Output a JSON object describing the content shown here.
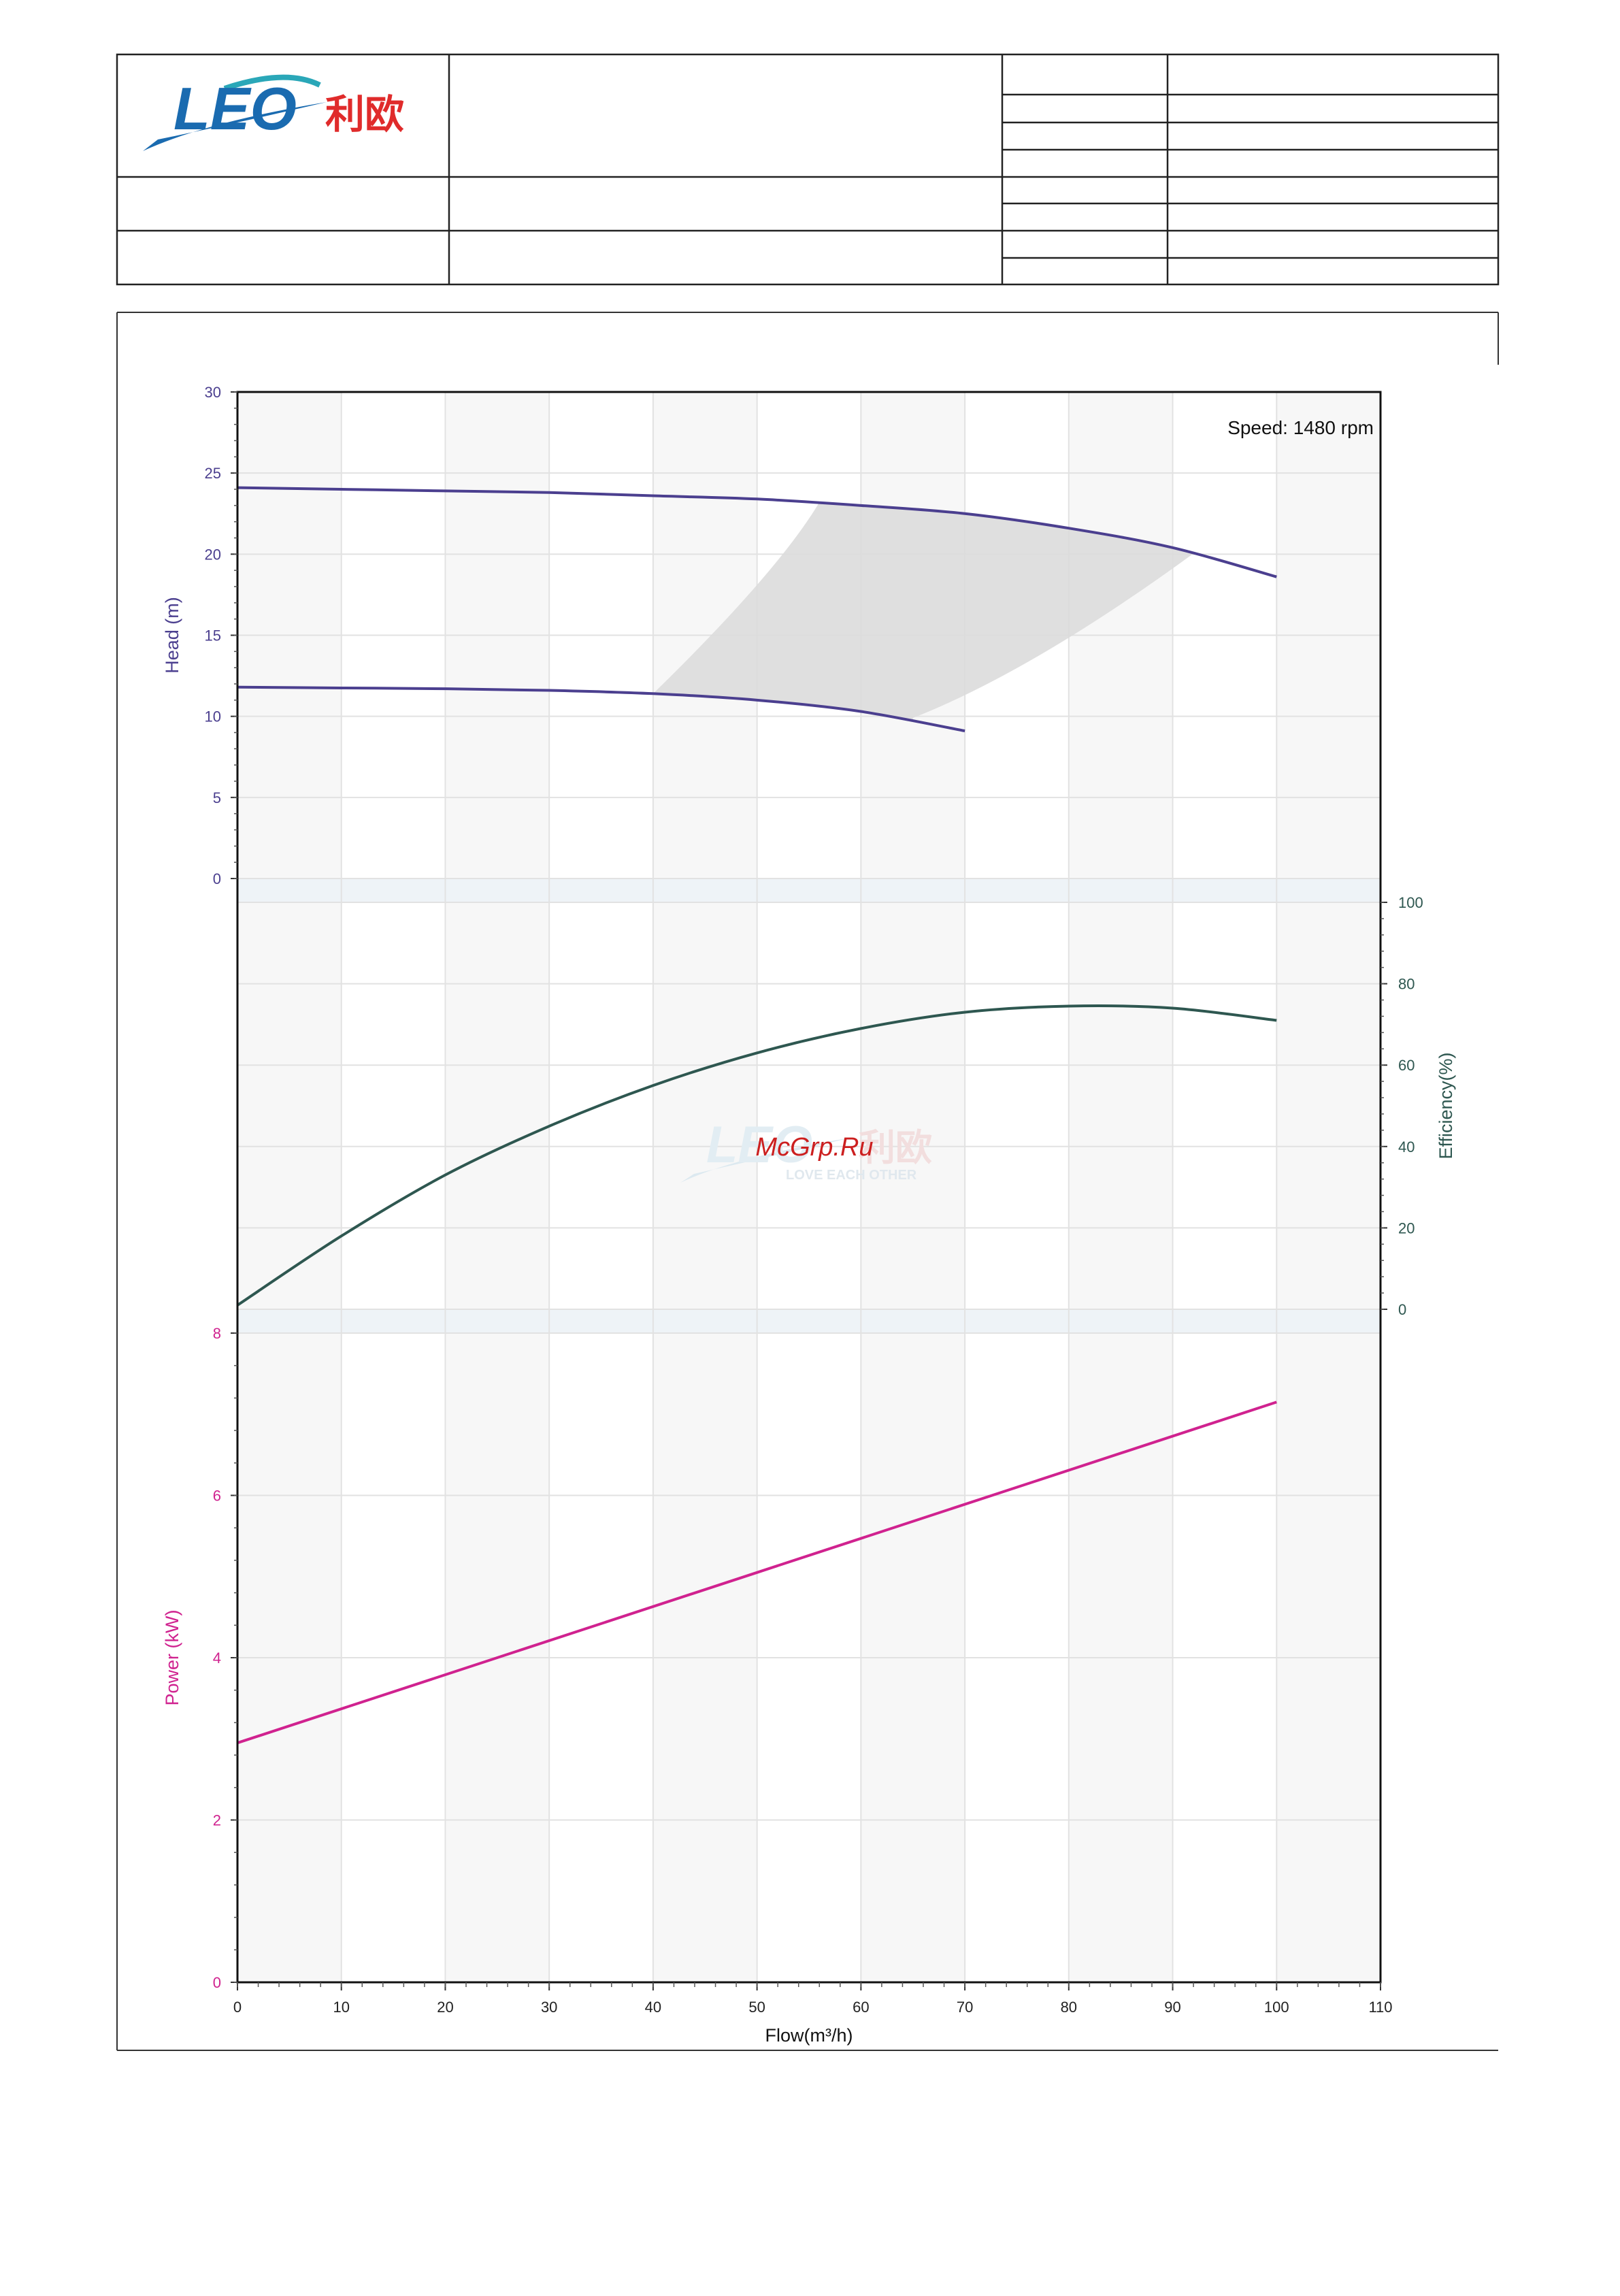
{
  "header": {
    "logo_text": "LEO",
    "logo_cn": "利欧"
  },
  "watermark": {
    "logo_text": "LEO",
    "logo_cn": "利欧",
    "slogan": "LOVE EACH OTHER",
    "site": "McGrp.Ru"
  },
  "colors": {
    "head": "#4b3f8f",
    "efficiency": "#2e5750",
    "power": "#d0228f",
    "logo_blue": "#1a6bb0",
    "logo_teal": "#2aa7b8",
    "logo_red": "#e02b2b",
    "watermark": "#cc1f1f",
    "band": "#eef3f7",
    "zone": "#dcdcdc"
  },
  "chart_data": [
    {
      "type": "line",
      "panel": "head",
      "ylabel": "Head (m)",
      "ylim": [
        0,
        30
      ],
      "yticks": [
        0,
        5,
        10,
        15,
        20,
        25,
        30
      ],
      "annotation": "Speed: 1480 rpm",
      "series": [
        {
          "x": [
            0,
            10,
            20,
            30,
            40,
            50,
            60,
            70,
            80,
            90,
            100
          ],
          "y": [
            24.1,
            24.0,
            23.9,
            23.8,
            23.6,
            23.4,
            23.0,
            22.5,
            21.6,
            20.4,
            18.6
          ]
        },
        {
          "x": [
            0,
            10,
            20,
            30,
            40,
            50,
            60,
            70
          ],
          "y": [
            11.8,
            11.75,
            11.7,
            11.6,
            11.4,
            11.0,
            10.3,
            9.1
          ]
        }
      ],
      "operating_zone": {
        "upper": [
          [
            56,
            23.2
          ],
          [
            92,
            20.1
          ]
        ],
        "lower": [
          [
            40,
            11.4
          ],
          [
            65,
            9.9
          ]
        ]
      }
    },
    {
      "type": "line",
      "panel": "efficiency",
      "ylabel": "Efficiency(%)",
      "ylim": [
        0,
        100
      ],
      "yticks": [
        0,
        20,
        40,
        60,
        80,
        100
      ],
      "series": [
        {
          "x": [
            0,
            10,
            20,
            30,
            40,
            50,
            60,
            70,
            80,
            90,
            100
          ],
          "y": [
            1,
            18,
            33,
            45,
            55,
            63,
            69,
            73,
            74.5,
            74,
            71
          ]
        }
      ]
    },
    {
      "type": "line",
      "panel": "power",
      "ylabel": "Power (kW)",
      "xlabel": "Flow(m³/h)",
      "ylim": [
        0,
        8
      ],
      "xlim": [
        0,
        110
      ],
      "yticks": [
        0,
        2,
        4,
        6,
        8
      ],
      "xticks": [
        0,
        10,
        20,
        30,
        40,
        50,
        60,
        70,
        80,
        90,
        100,
        110
      ],
      "series": [
        {
          "x": [
            0,
            100
          ],
          "y": [
            2.95,
            7.15
          ]
        }
      ]
    }
  ]
}
